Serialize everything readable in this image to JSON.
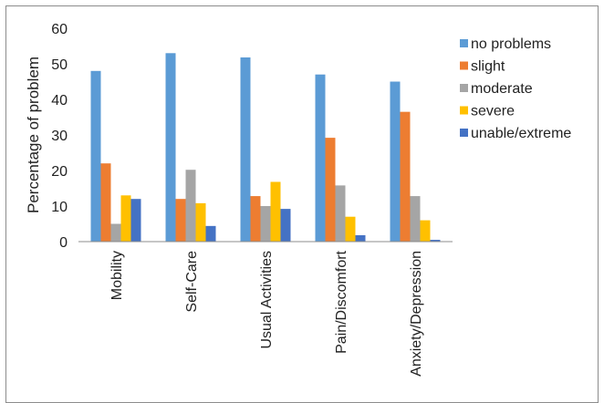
{
  "chart_data": {
    "type": "bar",
    "title": "",
    "xlabel": "",
    "ylabel": "Percentage of problem",
    "ylim": [
      0,
      60
    ],
    "yticks": [
      0,
      10,
      20,
      30,
      40,
      50,
      60
    ],
    "grid": false,
    "legend_position": "right",
    "categories": [
      "Mobility",
      "Self-Care",
      "Usual Activities",
      "Pain/Discomfort",
      "Anxiety/Depression"
    ],
    "series": [
      {
        "name": "no problems",
        "color": "#5B9BD5",
        "values": [
          48,
          53,
          51.8,
          47,
          45
        ]
      },
      {
        "name": "slight",
        "color": "#ED7D31",
        "values": [
          22,
          12,
          12.8,
          29.2,
          36.5
        ]
      },
      {
        "name": "moderate",
        "color": "#A5A5A5",
        "values": [
          5,
          20.2,
          10,
          15.8,
          12.8
        ]
      },
      {
        "name": "severe",
        "color": "#FFC000",
        "values": [
          13,
          10.8,
          16.8,
          7,
          6
        ]
      },
      {
        "name": "unable/extreme",
        "color": "#4472C4",
        "values": [
          12,
          4.4,
          9.2,
          1.8,
          0.5
        ]
      }
    ]
  }
}
